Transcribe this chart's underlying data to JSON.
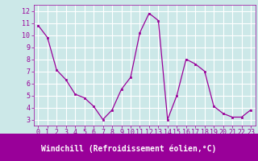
{
  "x": [
    0,
    1,
    2,
    3,
    4,
    5,
    6,
    7,
    8,
    9,
    10,
    11,
    12,
    13,
    14,
    15,
    16,
    17,
    18,
    19,
    20,
    21,
    22,
    23
  ],
  "y": [
    10.8,
    9.8,
    7.1,
    6.3,
    5.1,
    4.8,
    4.1,
    3.0,
    3.8,
    5.5,
    6.5,
    10.2,
    11.8,
    11.2,
    3.0,
    5.0,
    8.0,
    7.6,
    7.0,
    4.1,
    3.5,
    3.2,
    3.2,
    3.8
  ],
  "xlabel": "Windchill (Refroidissement éolien,°C)",
  "ylim": [
    2.5,
    12.5
  ],
  "xlim": [
    -0.5,
    23.5
  ],
  "yticks": [
    3,
    4,
    5,
    6,
    7,
    8,
    9,
    10,
    11,
    12
  ],
  "xticks": [
    0,
    1,
    2,
    3,
    4,
    5,
    6,
    7,
    8,
    9,
    10,
    11,
    12,
    13,
    14,
    15,
    16,
    17,
    18,
    19,
    20,
    21,
    22,
    23
  ],
  "line_color": "#990099",
  "marker_color": "#990099",
  "bg_color": "#cce8e8",
  "grid_color": "#ffffff",
  "xlabel_color": "#ffffff",
  "xlabel_bg": "#990099",
  "tick_color": "#990099",
  "font_family": "monospace",
  "tick_fontsize": 6.0,
  "xlabel_fontsize": 7.0
}
